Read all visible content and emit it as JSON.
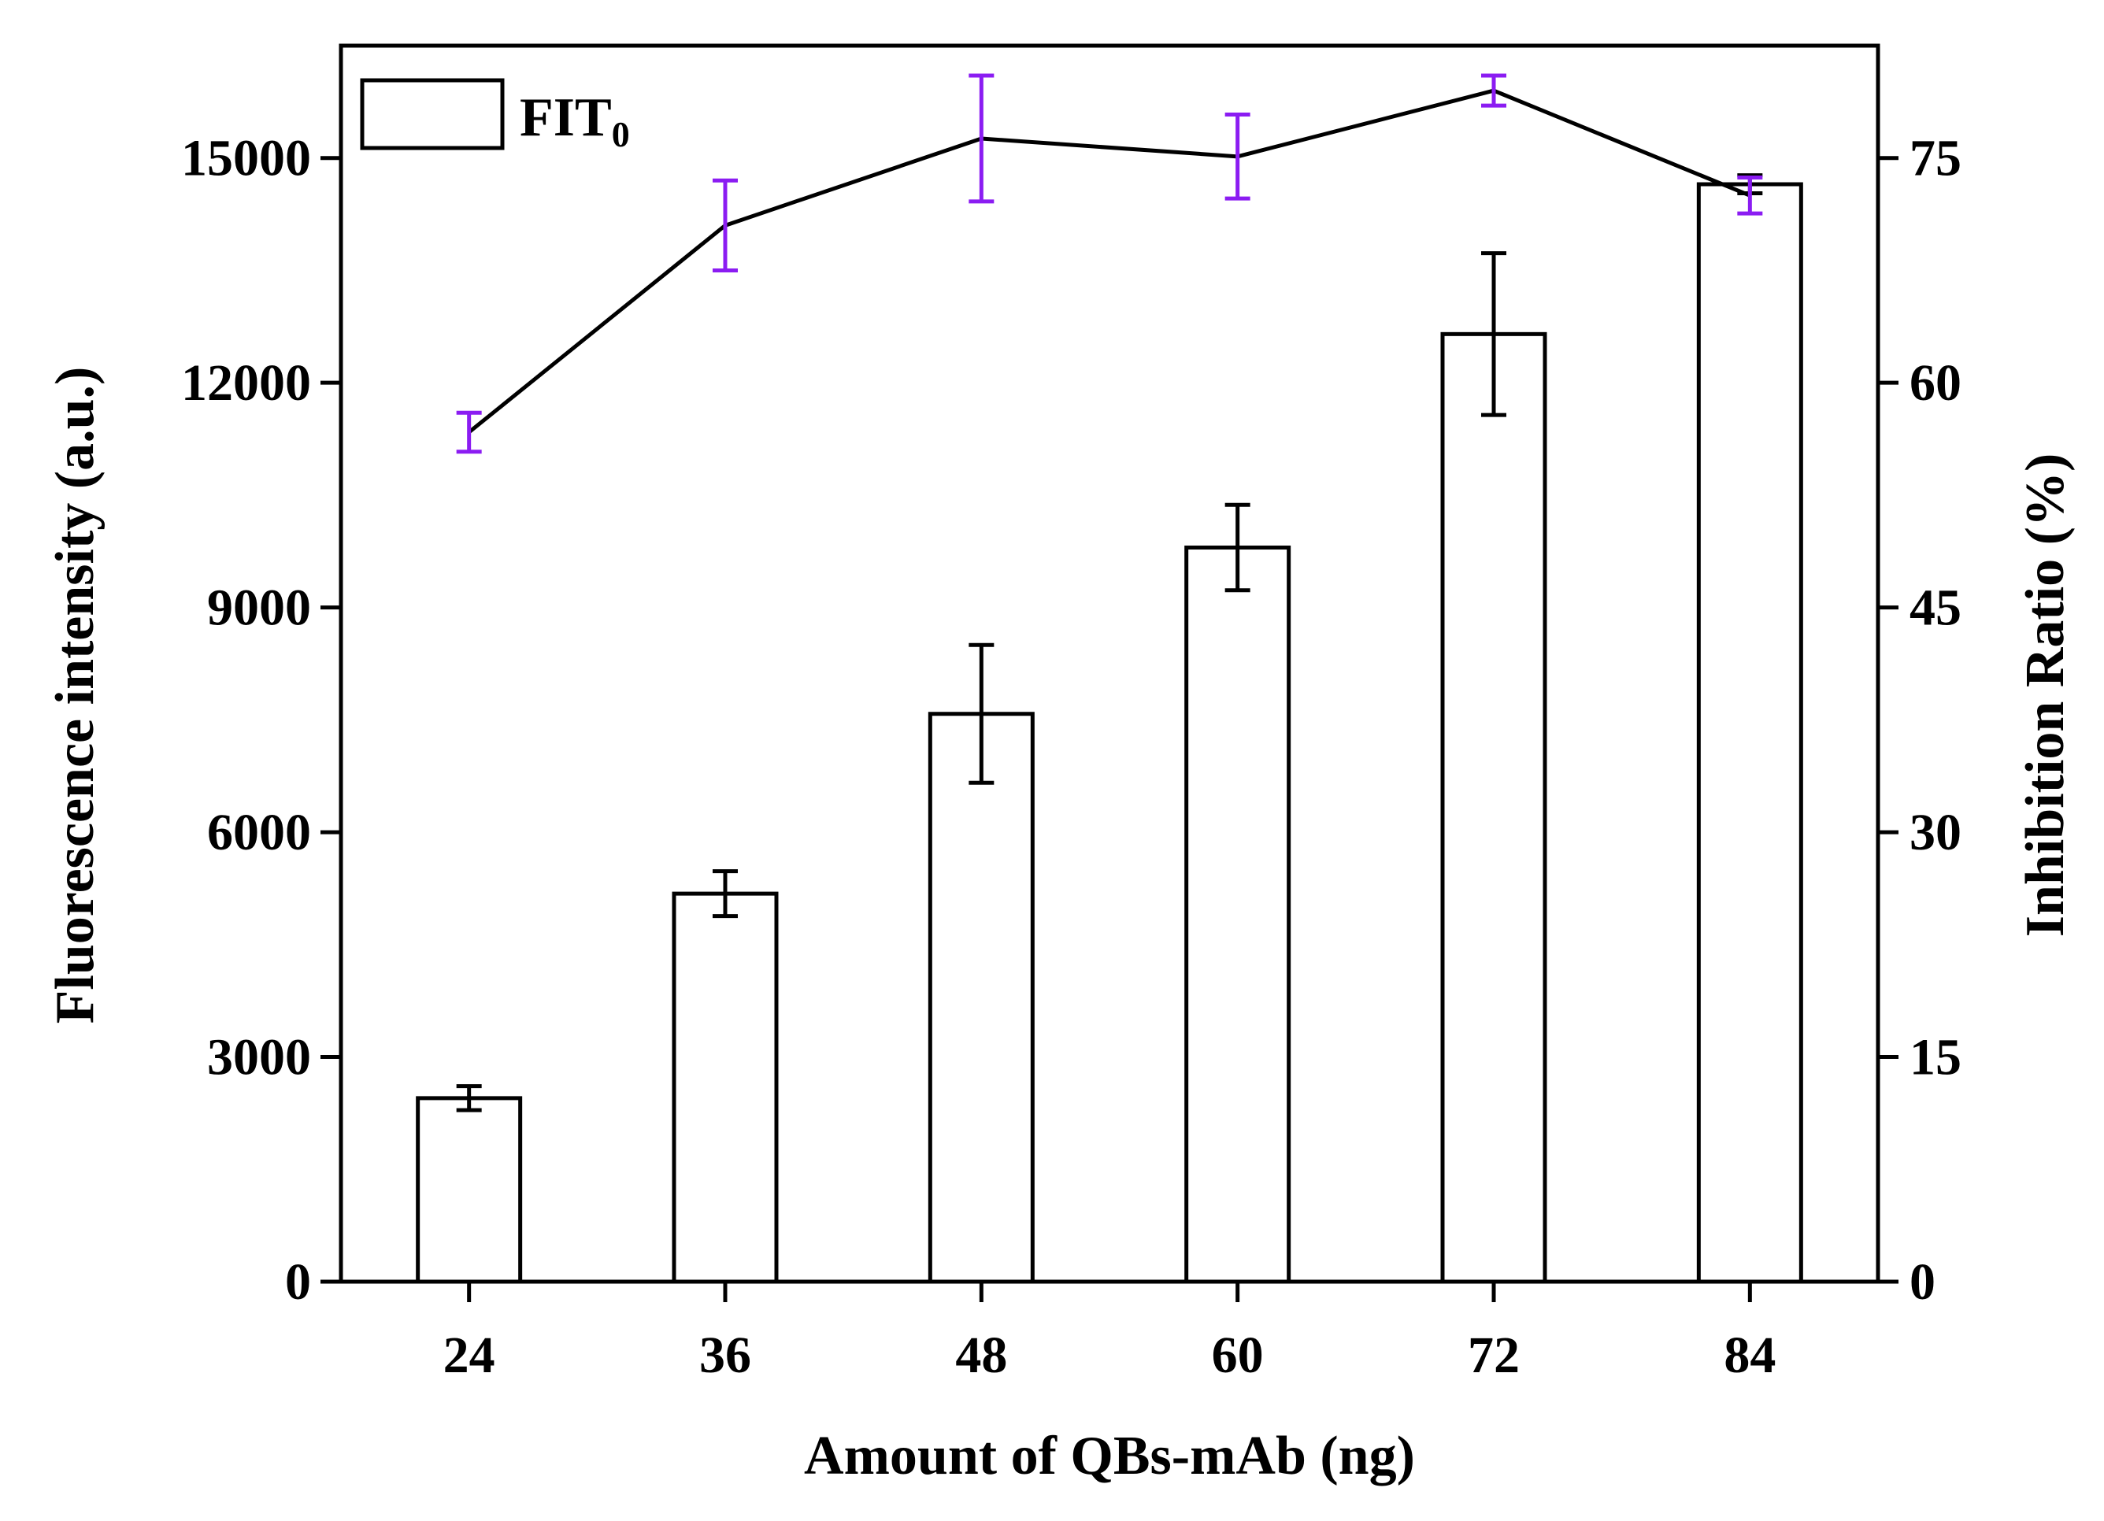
{
  "chart_data": {
    "type": "bar+line",
    "categories": [
      "24",
      "36",
      "48",
      "60",
      "72",
      "84"
    ],
    "xlabel": "Amount of QBs-mAb (ng)",
    "ylabel_left": "Fluorescence intensity (a.u.)",
    "ylabel_right": "Inhibition Ratio (%)",
    "ylim_left": [
      0,
      16500
    ],
    "yticks_left": [
      0,
      3000,
      6000,
      9000,
      12000,
      15000
    ],
    "ylim_right": [
      0,
      82.5
    ],
    "yticks_right": [
      0,
      15,
      30,
      45,
      60,
      75
    ],
    "bar_series": {
      "name": "FIT",
      "name_subscript": "0",
      "values": [
        2450,
        5180,
        7580,
        9800,
        12650,
        14650
      ],
      "errors": [
        160,
        300,
        920,
        570,
        1080,
        120
      ],
      "fill": "#ffffff",
      "stroke": "#000000"
    },
    "line_series": {
      "name": "Inhibition Ratio",
      "values": [
        56.7,
        70.5,
        76.3,
        75.1,
        79.5,
        72.5
      ],
      "errors": [
        1.3,
        3.0,
        4.2,
        2.8,
        1.0,
        1.2
      ],
      "line_color": "#000000",
      "error_color": "#8B1CF2"
    },
    "legend": {
      "placement": "top-left"
    },
    "grid": false
  }
}
